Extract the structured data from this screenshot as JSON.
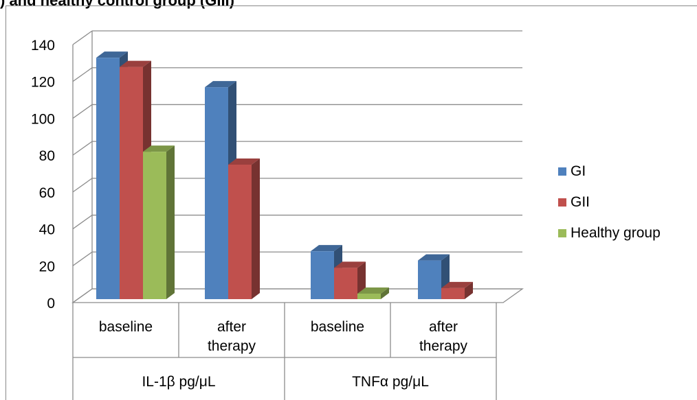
{
  "chart_data": {
    "type": "bar",
    "title": ") and healthy control group (GIII)",
    "categories": [
      "baseline",
      "after therapy",
      "baseline",
      "after therapy"
    ],
    "groups": [
      {
        "label": "IL-1β pg/μL",
        "categories": [
          "baseline",
          "after therapy"
        ]
      },
      {
        "label": "TNFα pg/μL",
        "categories": [
          "baseline",
          "after therapy"
        ]
      }
    ],
    "series": [
      {
        "name": "GI",
        "color": "#4F81BD",
        "values": [
          131,
          115,
          26,
          21
        ]
      },
      {
        "name": "GII",
        "color": "#C0504D",
        "values": [
          126,
          73,
          17,
          6
        ]
      },
      {
        "name": "Healthy group",
        "color": "#9BBB59",
        "values": [
          80,
          null,
          3,
          null
        ]
      }
    ],
    "yticks": [
      "0",
      "20",
      "40",
      "60",
      "80",
      "100",
      "120",
      "140"
    ],
    "ylim": [
      0,
      140
    ],
    "grid": true,
    "legend_position": "right"
  }
}
